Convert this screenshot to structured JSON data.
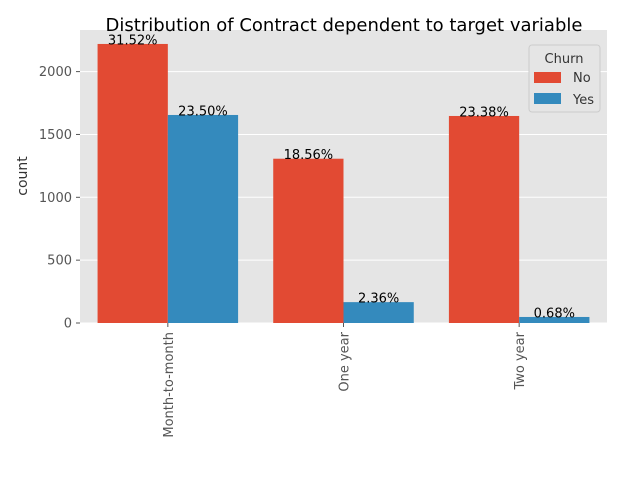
{
  "chart_data": {
    "type": "bar",
    "title": "Distribution of Contract dependent to target variable",
    "xlabel": "",
    "ylabel": "count",
    "categories": [
      "Month-to-month",
      "One year",
      "Two year"
    ],
    "series": [
      {
        "name": "No",
        "values": [
          2220,
          1307,
          1647
        ],
        "labels": [
          "31.52%",
          "18.56%",
          "23.38%"
        ],
        "color": "#E24A33"
      },
      {
        "name": "Yes",
        "values": [
          1655,
          166,
          48
        ],
        "labels": [
          "23.50%",
          "2.36%",
          "0.68%"
        ],
        "color": "#348ABD"
      }
    ],
    "yticks": [
      0,
      500,
      1000,
      1500,
      2000
    ],
    "ylim": [
      0,
      2331
    ],
    "grid": true,
    "legend": {
      "title": "Churn",
      "placement": "top-right"
    }
  }
}
